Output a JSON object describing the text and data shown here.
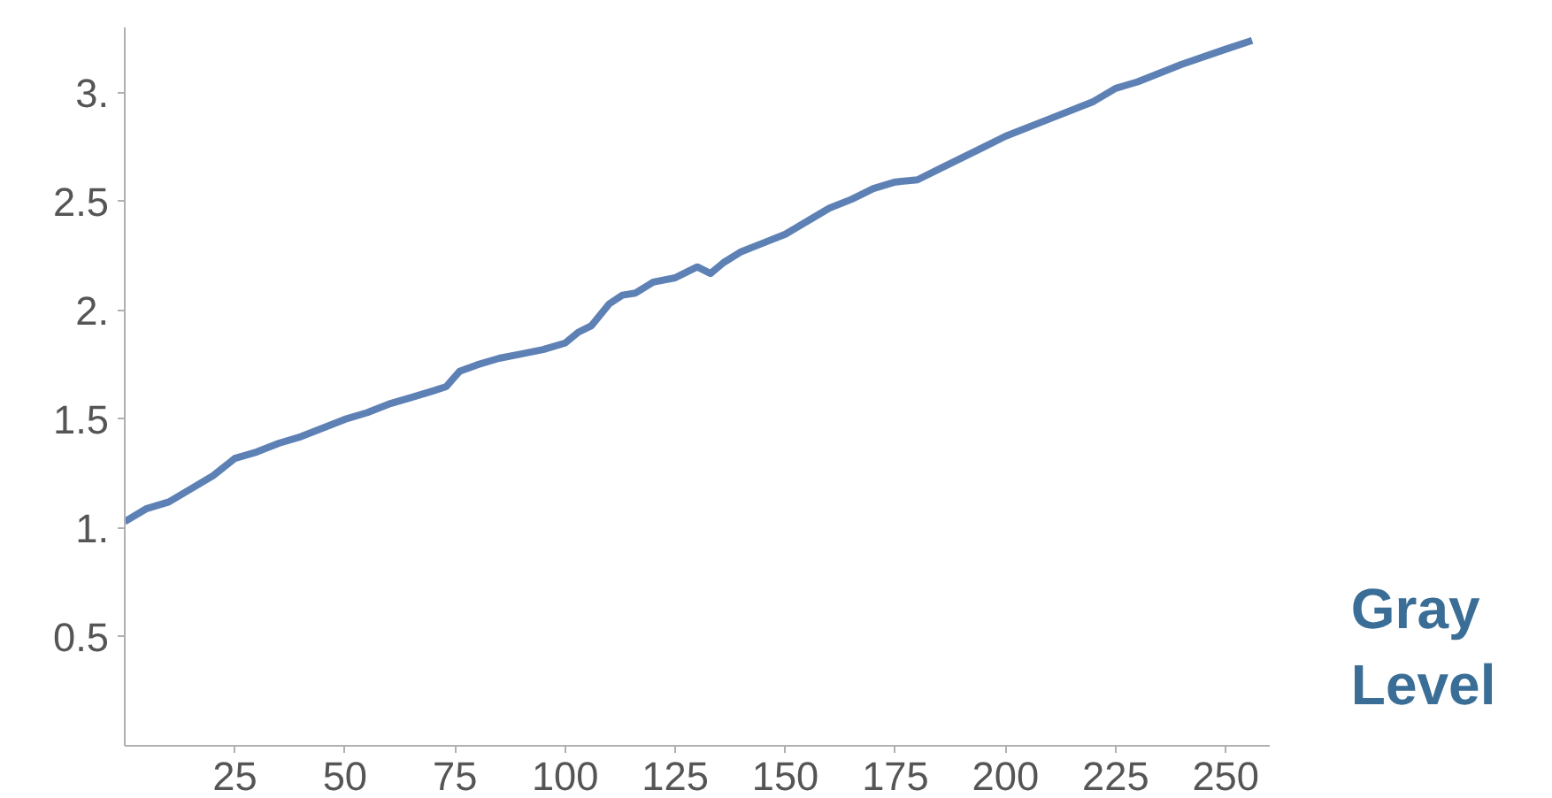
{
  "chart_data": {
    "type": "line",
    "xlabel": "Gray Level",
    "x": [
      0,
      5,
      10,
      15,
      20,
      25,
      30,
      35,
      40,
      45,
      50,
      55,
      60,
      65,
      70,
      73,
      76,
      80,
      85,
      90,
      95,
      100,
      103,
      106,
      110,
      113,
      116,
      120,
      125,
      130,
      133,
      136,
      140,
      145,
      150,
      155,
      160,
      165,
      170,
      175,
      180,
      185,
      190,
      195,
      200,
      210,
      220,
      225,
      230,
      240,
      250,
      256
    ],
    "series": [
      {
        "color": "#5e81b5",
        "values": [
          1.03,
          1.09,
          1.12,
          1.18,
          1.24,
          1.32,
          1.35,
          1.39,
          1.42,
          1.46,
          1.5,
          1.53,
          1.57,
          1.6,
          1.63,
          1.65,
          1.72,
          1.75,
          1.78,
          1.8,
          1.82,
          1.85,
          1.9,
          1.93,
          2.03,
          2.07,
          2.08,
          2.13,
          2.15,
          2.2,
          2.17,
          2.22,
          2.27,
          2.31,
          2.35,
          2.41,
          2.47,
          2.51,
          2.56,
          2.59,
          2.6,
          2.65,
          2.7,
          2.75,
          2.8,
          2.88,
          2.96,
          3.02,
          3.05,
          3.13,
          3.2,
          3.24
        ]
      }
    ],
    "xlim": [
      0,
      260
    ],
    "ylim": [
      0,
      3.3
    ],
    "xticks": [
      25,
      50,
      75,
      100,
      125,
      150,
      175,
      200,
      225,
      250
    ],
    "yticks": [
      0.5,
      {
        "value": 1,
        "label": "1."
      },
      1.5,
      {
        "value": 2,
        "label": "2."
      },
      2.5,
      {
        "value": 3,
        "label": "3."
      }
    ],
    "grid": false,
    "marker": "none",
    "line_style": "solid"
  }
}
